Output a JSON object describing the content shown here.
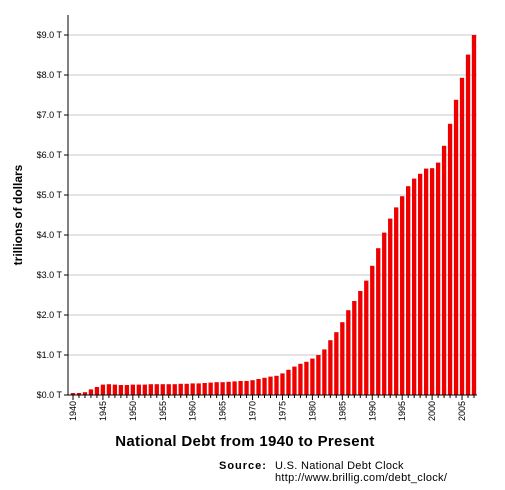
{
  "chart_data": {
    "type": "bar",
    "title": "National Debt from 1940 to Present",
    "ylabel": "trillions of dollars",
    "xlabel": "",
    "ylim": [
      0,
      9.0
    ],
    "y_ticks": [
      "$0.0 T",
      "$1.0 T",
      "$2.0 T",
      "$3.0 T",
      "$4.0 T",
      "$5.0 T",
      "$6.0 T",
      "$7.0 T",
      "$8.0 T",
      "$9.0 T"
    ],
    "x_ticks": [
      "1940",
      "1945",
      "1950",
      "1955",
      "1960",
      "1965",
      "1970",
      "1975",
      "1980",
      "1985",
      "1990",
      "1995",
      "2000",
      "2005"
    ],
    "grid": true,
    "bar_color": "#ee0000",
    "categories": [
      1940,
      1941,
      1942,
      1943,
      1944,
      1945,
      1946,
      1947,
      1948,
      1949,
      1950,
      1951,
      1952,
      1953,
      1954,
      1955,
      1956,
      1957,
      1958,
      1959,
      1960,
      1961,
      1962,
      1963,
      1964,
      1965,
      1966,
      1967,
      1968,
      1969,
      1970,
      1971,
      1972,
      1973,
      1974,
      1975,
      1976,
      1977,
      1978,
      1979,
      1980,
      1981,
      1982,
      1983,
      1984,
      1985,
      1986,
      1987,
      1988,
      1989,
      1990,
      1991,
      1992,
      1993,
      1994,
      1995,
      1996,
      1997,
      1998,
      1999,
      2000,
      2001,
      2002,
      2003,
      2004,
      2005,
      2006,
      2007
    ],
    "values": [
      0.05,
      0.05,
      0.07,
      0.14,
      0.2,
      0.26,
      0.27,
      0.26,
      0.25,
      0.25,
      0.26,
      0.26,
      0.26,
      0.27,
      0.27,
      0.27,
      0.27,
      0.27,
      0.28,
      0.28,
      0.29,
      0.29,
      0.3,
      0.31,
      0.32,
      0.32,
      0.33,
      0.34,
      0.35,
      0.35,
      0.37,
      0.4,
      0.43,
      0.46,
      0.48,
      0.54,
      0.63,
      0.71,
      0.78,
      0.83,
      0.91,
      1.0,
      1.14,
      1.37,
      1.57,
      1.82,
      2.12,
      2.35,
      2.6,
      2.86,
      3.23,
      3.67,
      4.06,
      4.41,
      4.69,
      4.97,
      5.22,
      5.41,
      5.53,
      5.66,
      5.67,
      5.81,
      6.23,
      6.78,
      7.38,
      7.93,
      8.51,
      9.0
    ]
  },
  "source": {
    "label": "Source:",
    "name": "U.S. National Debt Clock",
    "url": "http://www.brillig.com/debt_clock/"
  }
}
